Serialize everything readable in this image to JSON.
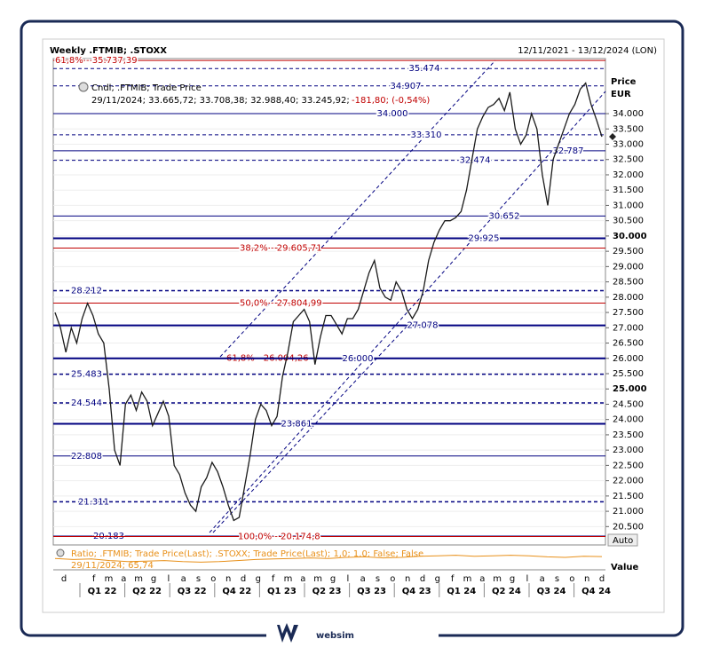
{
  "header": {
    "title": "Weekly .FTMIB; .STOXX",
    "range": "12/11/2021 - 13/12/2024 (LON)"
  },
  "legend": {
    "series": "Cndl; .FTMIB; Trade Price",
    "values": "29/11/2024; 33.665,72; 33.708,38; 32.988,40; 33.245,92;",
    "change": "-181,80; (-0,54%)"
  },
  "axis": {
    "title": "Price",
    "unit": "EUR",
    "auto": "Auto",
    "lower_title": "Value"
  },
  "chart_data": {
    "type": "line",
    "ylim": [
      19900,
      35800
    ],
    "yticks": [
      {
        "value": 34000,
        "label": "34.000"
      },
      {
        "value": 33500,
        "label": "33.500"
      },
      {
        "value": 33000,
        "label": "33.000"
      },
      {
        "value": 32500,
        "label": "32.500"
      },
      {
        "value": 32000,
        "label": "32.000"
      },
      {
        "value": 31500,
        "label": "31.500"
      },
      {
        "value": 31000,
        "label": "31.000"
      },
      {
        "value": 30500,
        "label": "30.500"
      },
      {
        "value": 30000,
        "label": "30.000",
        "bold": true
      },
      {
        "value": 29500,
        "label": "29.500"
      },
      {
        "value": 29000,
        "label": "29.000"
      },
      {
        "value": 28500,
        "label": "28.500"
      },
      {
        "value": 28000,
        "label": "28.000"
      },
      {
        "value": 27500,
        "label": "27.500"
      },
      {
        "value": 27000,
        "label": "27.000"
      },
      {
        "value": 26500,
        "label": "26.500"
      },
      {
        "value": 26000,
        "label": "26.000"
      },
      {
        "value": 25500,
        "label": "25.500"
      },
      {
        "value": 25000,
        "label": "25.000",
        "bold": true
      },
      {
        "value": 24500,
        "label": "24.500"
      },
      {
        "value": 24000,
        "label": "24.000"
      },
      {
        "value": 23500,
        "label": "23.500"
      },
      {
        "value": 23000,
        "label": "23.000"
      },
      {
        "value": 22500,
        "label": "22.500"
      },
      {
        "value": 22000,
        "label": "22.000"
      },
      {
        "value": 21500,
        "label": "21.500"
      },
      {
        "value": 21000,
        "label": "21.000"
      },
      {
        "value": 20500,
        "label": "20.500"
      }
    ],
    "months": [
      "d",
      null,
      "f",
      "m",
      "a",
      "m",
      "g",
      "l",
      "a",
      "s",
      "o",
      "n",
      "d",
      "g",
      "f",
      "m",
      "a",
      "m",
      "g",
      "l",
      "a",
      "s",
      "o",
      "n",
      "d",
      "g",
      "f",
      "m",
      "a",
      "m",
      "g",
      "l",
      "a",
      "s",
      "o",
      "n",
      "d"
    ],
    "quarters": [
      "Q1 22",
      "Q2 22",
      "Q3 22",
      "Q4 22",
      "Q1 23",
      "Q2 23",
      "Q3 23",
      "Q4 23",
      "Q1 24",
      "Q2 24",
      "Q3 24",
      "Q4 24"
    ],
    "price": {
      "name": ".FTMIB",
      "color": "#1a1a1a",
      "values": [
        27500,
        27000,
        26200,
        27000,
        26500,
        27300,
        27800,
        27400,
        26800,
        26500,
        25000,
        23000,
        22500,
        24500,
        24800,
        24300,
        24900,
        24600,
        23800,
        24200,
        24600,
        24100,
        22500,
        22200,
        21600,
        21200,
        21000,
        21800,
        22100,
        22600,
        22300,
        21800,
        21200,
        20700,
        20800,
        21800,
        22800,
        24000,
        24500,
        24300,
        23800,
        24100,
        25400,
        26200,
        27200,
        27400,
        27600,
        27200,
        25800,
        26700,
        27400,
        27400,
        27100,
        26800,
        27300,
        27300,
        27600,
        28200,
        28800,
        29200,
        28300,
        28000,
        27900,
        28500,
        28200,
        27600,
        27300,
        27600,
        28200,
        29200,
        29800,
        30200,
        30500,
        30500,
        30600,
        30800,
        31500,
        32500,
        33500,
        33900,
        34200,
        34300,
        34500,
        34100,
        34700,
        33500,
        33000,
        33300,
        34000,
        33500,
        32000,
        31000,
        32500,
        33000,
        33500,
        34000,
        34300,
        34800,
        35000,
        34300,
        33800,
        33245.92
      ]
    },
    "levels": [
      {
        "value": 35737.39,
        "label": "61,8% - 35.737,39",
        "color": "#c00000",
        "style": "solid",
        "width": 1
      },
      {
        "value": 35474,
        "label": "35.474",
        "color": "#000080",
        "style": "dashed",
        "width": 1
      },
      {
        "value": 34907,
        "label": "34.907",
        "color": "#000080",
        "style": "dashed",
        "width": 1
      },
      {
        "value": 34000,
        "label": "34.000",
        "color": "#000080",
        "style": "solid",
        "width": 1
      },
      {
        "value": 33310,
        "label": "33.310",
        "color": "#000080",
        "style": "dashed",
        "width": 1
      },
      {
        "value": 32787,
        "label": "32.787",
        "color": "#000080",
        "style": "solid",
        "width": 1
      },
      {
        "value": 32474,
        "label": "32.474",
        "color": "#000080",
        "style": "dashed",
        "width": 1
      },
      {
        "value": 30652,
        "label": "30.652",
        "color": "#000080",
        "style": "solid",
        "width": 1
      },
      {
        "value": 29925,
        "label": "29.925",
        "color": "#000080",
        "style": "solid",
        "width": 2
      },
      {
        "value": 29605.71,
        "label": "38,2% - 29.605,71",
        "color": "#c00000",
        "style": "solid",
        "width": 1
      },
      {
        "value": 28212,
        "label": "28.212",
        "color": "#000080",
        "style": "dashed",
        "width": 1.5
      },
      {
        "value": 27804.99,
        "label": "50,0% - 27.804,99",
        "color": "#c00000",
        "style": "solid",
        "width": 1
      },
      {
        "value": 27078,
        "label": "27.078",
        "color": "#000080",
        "style": "solid",
        "width": 2
      },
      {
        "value": 26004.26,
        "label": "61,8% - 26.004,26",
        "color": "#c00000",
        "style": "solid",
        "width": 1
      },
      {
        "value": 26000,
        "label": "26.000",
        "color": "#000080",
        "style": "solid",
        "width": 2
      },
      {
        "value": 25483,
        "label": "25.483",
        "color": "#000080",
        "style": "dashed",
        "width": 1.5
      },
      {
        "value": 24544,
        "label": "24.544",
        "color": "#000080",
        "style": "dashed",
        "width": 1.5
      },
      {
        "value": 23861,
        "label": "23.861",
        "color": "#000080",
        "style": "solid",
        "width": 2
      },
      {
        "value": 22808,
        "label": "22.808",
        "color": "#000080",
        "style": "solid",
        "width": 1
      },
      {
        "value": 21311,
        "label": "21.311",
        "color": "#000080",
        "style": "dashed",
        "width": 1.5
      },
      {
        "value": 20183,
        "label": "20.183",
        "color": "#000080",
        "style": "solid",
        "width": 1.5
      },
      {
        "value": 20174.8,
        "label": "100,0% - 20.174,8",
        "color": "#c00000",
        "style": "solid",
        "width": 1
      }
    ],
    "ratio": {
      "label": "Ratio; .FTMIB; Trade Price(Last); .STOXX; Trade Price(Last); 1,0; 1,0; False; False",
      "last": "29/11/2024; 65,74",
      "color": "#e8901a",
      "ylim": [
        55,
        75
      ],
      "values": [
        64,
        63,
        63.5,
        62,
        61,
        61.5,
        62,
        61,
        60.5,
        61,
        62,
        63,
        63.5,
        64,
        64.5,
        64,
        65,
        65.5,
        64.5,
        65,
        66,
        66.5,
        67,
        66,
        66.5,
        67,
        66.5,
        65.5,
        65,
        66,
        65.74
      ]
    }
  },
  "brand": "websim"
}
